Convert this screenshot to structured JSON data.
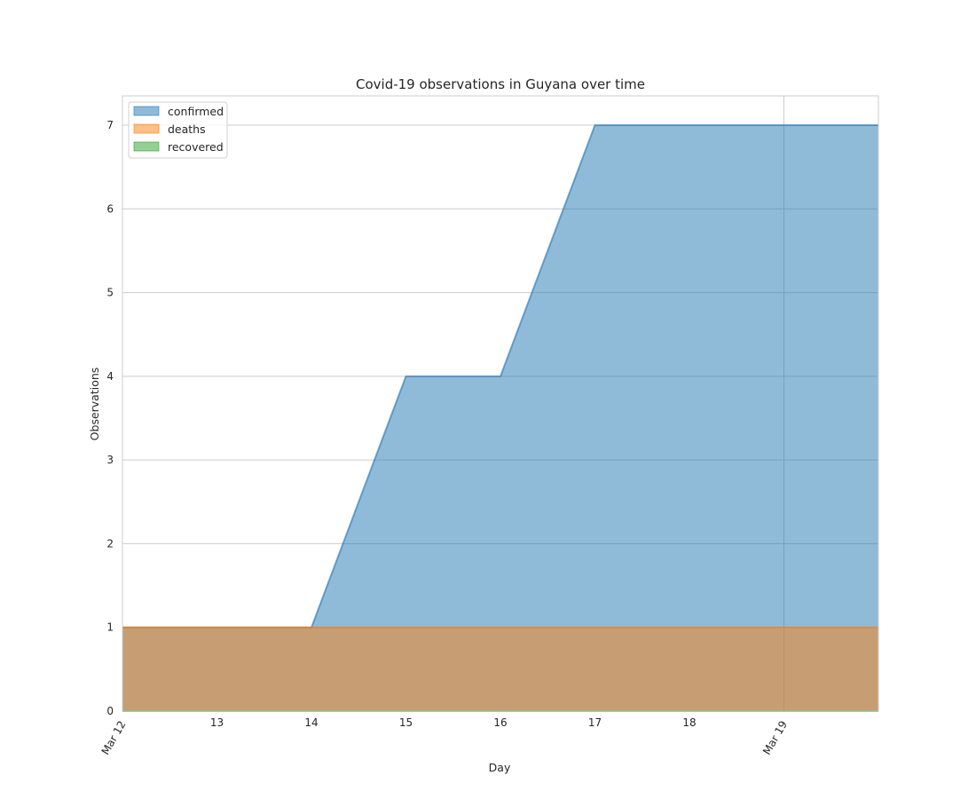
{
  "chart_data": {
    "type": "area",
    "title": "Covid-19 observations in Guyana over time",
    "xlabel": "Day",
    "ylabel": "Observations",
    "x": [
      "2020-03-12",
      "2020-03-13",
      "2020-03-14",
      "2020-03-15",
      "2020-03-16",
      "2020-03-17",
      "2020-03-18",
      "2020-03-19",
      "2020-03-20"
    ],
    "x_tick_labels": [
      {
        "date": "2020-03-12",
        "label": "Mar 12",
        "major": true
      },
      {
        "date": "2020-03-13",
        "label": "13",
        "major": false
      },
      {
        "date": "2020-03-14",
        "label": "14",
        "major": false
      },
      {
        "date": "2020-03-15",
        "label": "15",
        "major": false
      },
      {
        "date": "2020-03-16",
        "label": "16",
        "major": false
      },
      {
        "date": "2020-03-17",
        "label": "17",
        "major": false
      },
      {
        "date": "2020-03-18",
        "label": "18",
        "major": false
      },
      {
        "date": "2020-03-19",
        "label": "Mar 19",
        "major": true
      }
    ],
    "xlim": [
      "2020-03-12",
      "2020-03-20"
    ],
    "y_ticks": [
      0,
      1,
      2,
      3,
      4,
      5,
      6,
      7
    ],
    "ylim": [
      0,
      7.35
    ],
    "grid": true,
    "legend_position": "top-left",
    "series": [
      {
        "name": "confirmed",
        "values": [
          1,
          1,
          1,
          4,
          4,
          7,
          7,
          7,
          7
        ],
        "color": "#1f77b4"
      },
      {
        "name": "deaths",
        "values": [
          1,
          1,
          1,
          1,
          1,
          1,
          1,
          1,
          1
        ],
        "color": "#ff7f0e"
      },
      {
        "name": "recovered",
        "values": [
          0,
          0,
          0,
          0,
          0,
          0,
          0,
          0,
          0
        ],
        "color": "#2ca02c"
      }
    ]
  }
}
